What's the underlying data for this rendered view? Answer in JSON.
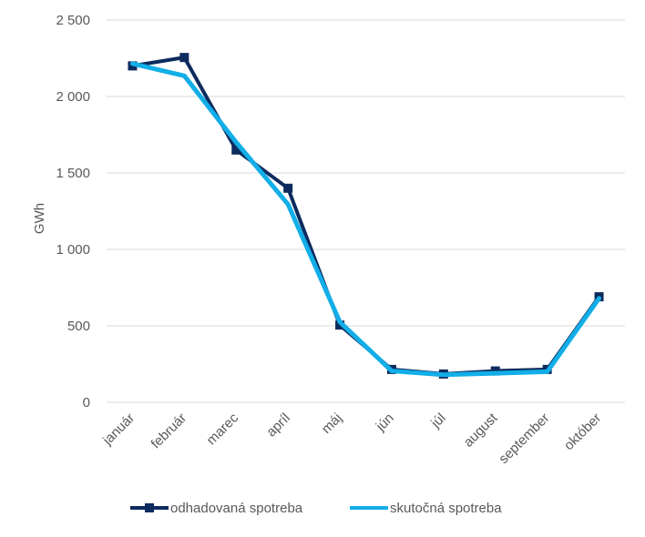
{
  "chart_data": {
    "type": "line",
    "ylabel": "GWh",
    "ylim": [
      0,
      2500
    ],
    "yticks": [
      {
        "value": 0,
        "label": "0"
      },
      {
        "value": 500,
        "label": "500"
      },
      {
        "value": 1000,
        "label": "1 000"
      },
      {
        "value": 1500,
        "label": "1 500"
      },
      {
        "value": 2000,
        "label": "2 000"
      },
      {
        "value": 2500,
        "label": "2 500"
      }
    ],
    "grid": true,
    "legend_position": "bottom",
    "categories": [
      "január",
      "február",
      "marec",
      "apríl",
      "máj",
      "jún",
      "júl",
      "august",
      "september",
      "október"
    ],
    "series": [
      {
        "name": "odhadovaná spotreba",
        "color": "#0d2b5e",
        "marker": "square",
        "values": [
          2200,
          2255,
          1650,
          1400,
          505,
          215,
          185,
          205,
          215,
          690
        ]
      },
      {
        "name": "skutočná spotreba",
        "color": "#12aee8",
        "marker": "none",
        "values": [
          2215,
          2135,
          1700,
          1295,
          525,
          205,
          180,
          190,
          200,
          680
        ]
      }
    ]
  }
}
